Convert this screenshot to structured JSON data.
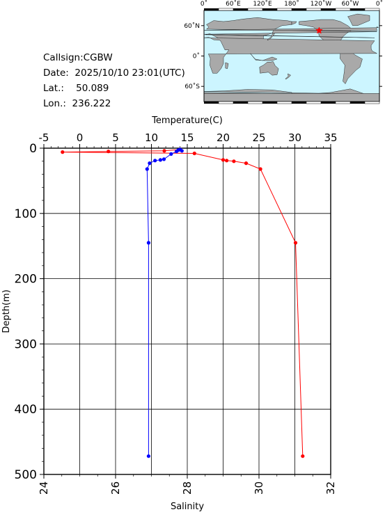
{
  "station": {
    "callsign_label": "Callsign:",
    "callsign": "CGBW",
    "date_label": "Date:",
    "date": "2025/10/10 23:01(UTC)",
    "lat_label": "Lat.:",
    "lat": "50.089",
    "lon_label": "Lon.:",
    "lon": "236.222"
  },
  "map": {
    "lon_ticks": [
      "0˚",
      "60˚E",
      "120˚E",
      "180˚",
      "120˚W",
      "60˚W",
      "0˚"
    ],
    "lat_ticks": [
      "60˚N",
      "0˚",
      "60˚S"
    ],
    "ocean_color": "#ccf5ff",
    "land_color": "#a9a9a9",
    "marker_color": "#ff0000",
    "marker_lon": 236.222,
    "marker_lat": 50.089
  },
  "chart_data": {
    "type": "line",
    "xlabel_top": "Temperature(C)",
    "xlabel_bottom": "Salinity",
    "ylabel": "Depth(m)",
    "temperature_lim": [
      -5,
      35
    ],
    "salinity_lim": [
      24,
      32
    ],
    "depth_lim": [
      0,
      500
    ],
    "temperature_ticks": [
      -5,
      0,
      5,
      10,
      15,
      20,
      25,
      30,
      35
    ],
    "salinity_ticks": [
      24,
      26,
      28,
      30,
      32
    ],
    "depth_ticks": [
      0,
      100,
      200,
      300,
      400,
      500
    ],
    "grid": true,
    "series": [
      {
        "axis": "temperature",
        "color": "#ff0000",
        "depth": [
          2,
          4,
          5,
          6,
          8,
          18,
          19,
          20,
          23,
          32,
          145,
          472
        ],
        "values": [
          14.0,
          11.8,
          4.0,
          -2.4,
          16.0,
          20.0,
          20.5,
          21.5,
          23.2,
          25.2,
          30.1,
          31.1
        ]
      },
      {
        "axis": "salinity",
        "color": "#0000ff",
        "depth": [
          2,
          3,
          4,
          5,
          9,
          17,
          18,
          19,
          23,
          32,
          145,
          472
        ],
        "values": [
          27.8,
          27.75,
          27.85,
          27.7,
          27.55,
          27.35,
          27.25,
          27.1,
          26.95,
          26.88,
          26.92,
          26.92
        ]
      }
    ]
  }
}
